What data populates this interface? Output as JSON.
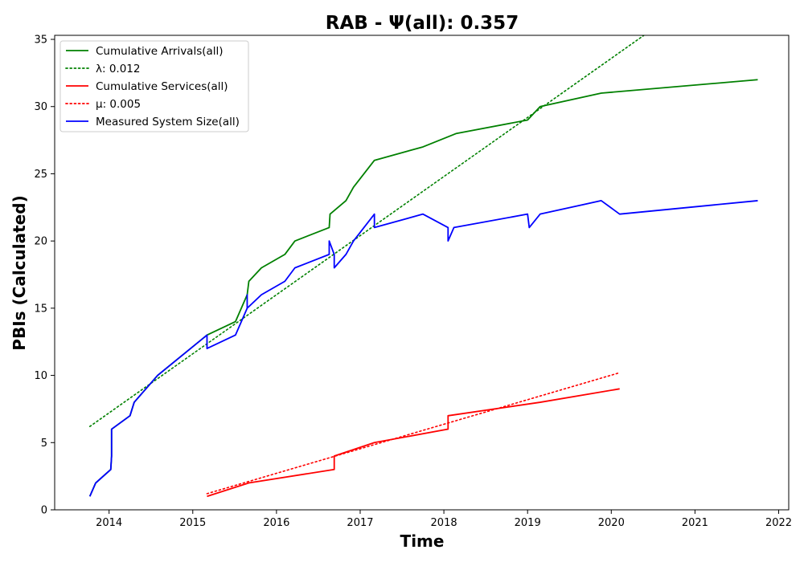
{
  "chart_data": {
    "type": "line",
    "title": "RAB -  Ψ(all): 0.357",
    "xlabel": "Time",
    "ylabel": "PBIs (Calculated)",
    "xlim": [
      2013.35,
      2022.12
    ],
    "ylim": [
      0,
      35.3
    ],
    "x_ticks": [
      2014,
      2015,
      2016,
      2017,
      2018,
      2019,
      2020,
      2021,
      2022
    ],
    "y_ticks": [
      0,
      5,
      10,
      15,
      20,
      25,
      30,
      35
    ],
    "grid": false,
    "legend_position": "upper-left",
    "series": [
      {
        "name": "Cumulative Arrivals(all)",
        "color": "#008000",
        "style": "solid",
        "points": [
          [
            2013.77,
            1
          ],
          [
            2013.84,
            2
          ],
          [
            2014.02,
            3
          ],
          [
            2014.03,
            4
          ],
          [
            2014.03,
            6
          ],
          [
            2014.25,
            7
          ],
          [
            2014.3,
            8
          ],
          [
            2014.58,
            10
          ],
          [
            2015.17,
            13
          ],
          [
            2015.51,
            14
          ],
          [
            2015.65,
            16
          ],
          [
            2015.67,
            17
          ],
          [
            2015.82,
            18
          ],
          [
            2016.1,
            19
          ],
          [
            2016.22,
            20
          ],
          [
            2016.63,
            21
          ],
          [
            2016.64,
            22
          ],
          [
            2016.83,
            23
          ],
          [
            2016.92,
            24
          ],
          [
            2017.17,
            26
          ],
          [
            2017.75,
            27
          ],
          [
            2018.15,
            28
          ],
          [
            2019.0,
            29
          ],
          [
            2019.15,
            30
          ],
          [
            2019.88,
            31
          ],
          [
            2021.75,
            32
          ]
        ]
      },
      {
        "name": "λ: 0.012",
        "color": "#008000",
        "style": "dotted",
        "points": [
          [
            2013.77,
            6.2
          ],
          [
            2020.39,
            35.3
          ]
        ]
      },
      {
        "name": "Cumulative Services(all)",
        "color": "#ff0000",
        "style": "solid",
        "points": [
          [
            2015.17,
            1
          ],
          [
            2015.67,
            2
          ],
          [
            2016.69,
            3
          ],
          [
            2016.69,
            4
          ],
          [
            2017.17,
            5
          ],
          [
            2018.05,
            6
          ],
          [
            2018.05,
            7
          ],
          [
            2019.15,
            8
          ],
          [
            2020.1,
            9
          ]
        ]
      },
      {
        "name": "μ: 0.005",
        "color": "#ff0000",
        "style": "dotted",
        "points": [
          [
            2015.17,
            1.2
          ],
          [
            2020.1,
            10.2
          ]
        ]
      },
      {
        "name": "Measured System Size(all)",
        "color": "#0000ff",
        "style": "solid",
        "points": [
          [
            2013.77,
            1
          ],
          [
            2013.84,
            2
          ],
          [
            2014.02,
            3
          ],
          [
            2014.03,
            4
          ],
          [
            2014.03,
            6
          ],
          [
            2014.25,
            7
          ],
          [
            2014.3,
            8
          ],
          [
            2014.58,
            10
          ],
          [
            2015.17,
            13
          ],
          [
            2015.17,
            12
          ],
          [
            2015.51,
            13
          ],
          [
            2015.65,
            15
          ],
          [
            2015.65,
            16
          ],
          [
            2015.65,
            15
          ],
          [
            2015.82,
            16
          ],
          [
            2016.1,
            17
          ],
          [
            2016.22,
            18
          ],
          [
            2016.63,
            19
          ],
          [
            2016.63,
            20
          ],
          [
            2016.69,
            19
          ],
          [
            2016.69,
            18
          ],
          [
            2016.83,
            19
          ],
          [
            2016.92,
            20
          ],
          [
            2017.17,
            22
          ],
          [
            2017.17,
            21
          ],
          [
            2017.75,
            22
          ],
          [
            2018.05,
            21
          ],
          [
            2018.05,
            20
          ],
          [
            2018.12,
            21
          ],
          [
            2019.0,
            22
          ],
          [
            2019.02,
            21
          ],
          [
            2019.15,
            22
          ],
          [
            2019.88,
            23
          ],
          [
            2020.1,
            22
          ],
          [
            2021.75,
            23
          ]
        ]
      }
    ]
  }
}
